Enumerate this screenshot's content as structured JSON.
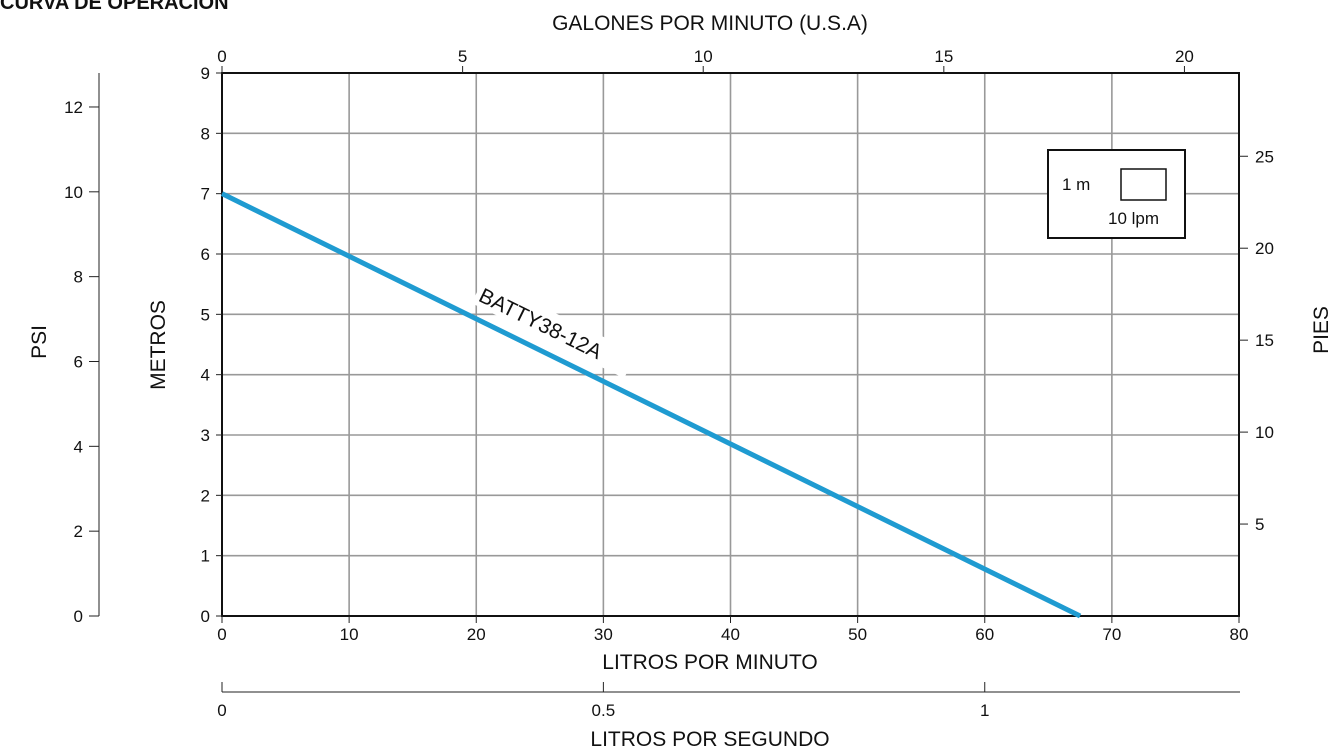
{
  "chart_data": {
    "type": "line",
    "title": "CURVA DE OPERACIÓN",
    "x_bottom": {
      "label": "LITROS POR MINUTO",
      "range": [
        0,
        80
      ],
      "ticks": [
        0,
        10,
        20,
        30,
        40,
        50,
        60,
        70,
        80
      ]
    },
    "x_top": {
      "label": "GALONES POR MINUTO (U.S.A)",
      "ticks": [
        0,
        5,
        10,
        15,
        20
      ]
    },
    "x_lps": {
      "label": "LITROS POR SEGUNDO",
      "ticks": [
        "0",
        "0.5",
        "1"
      ]
    },
    "y_left": {
      "label": "METROS",
      "range": [
        0,
        9
      ],
      "ticks": [
        0,
        1,
        2,
        3,
        4,
        5,
        6,
        7,
        8,
        9
      ]
    },
    "y_right": {
      "label": "PIES",
      "ticks": [
        5,
        10,
        15,
        20,
        25
      ]
    },
    "y_psi": {
      "label": "PSI",
      "ticks": [
        0,
        2,
        4,
        6,
        8,
        10,
        12
      ]
    },
    "grid": true,
    "series": [
      {
        "name": "BATTY38-12A",
        "color": "#1f9bd1",
        "x": [
          0,
          67.5
        ],
        "y": [
          7,
          0
        ]
      }
    ],
    "legend_box": {
      "label_m": "1 m",
      "label_lpm": "10 lpm"
    }
  }
}
